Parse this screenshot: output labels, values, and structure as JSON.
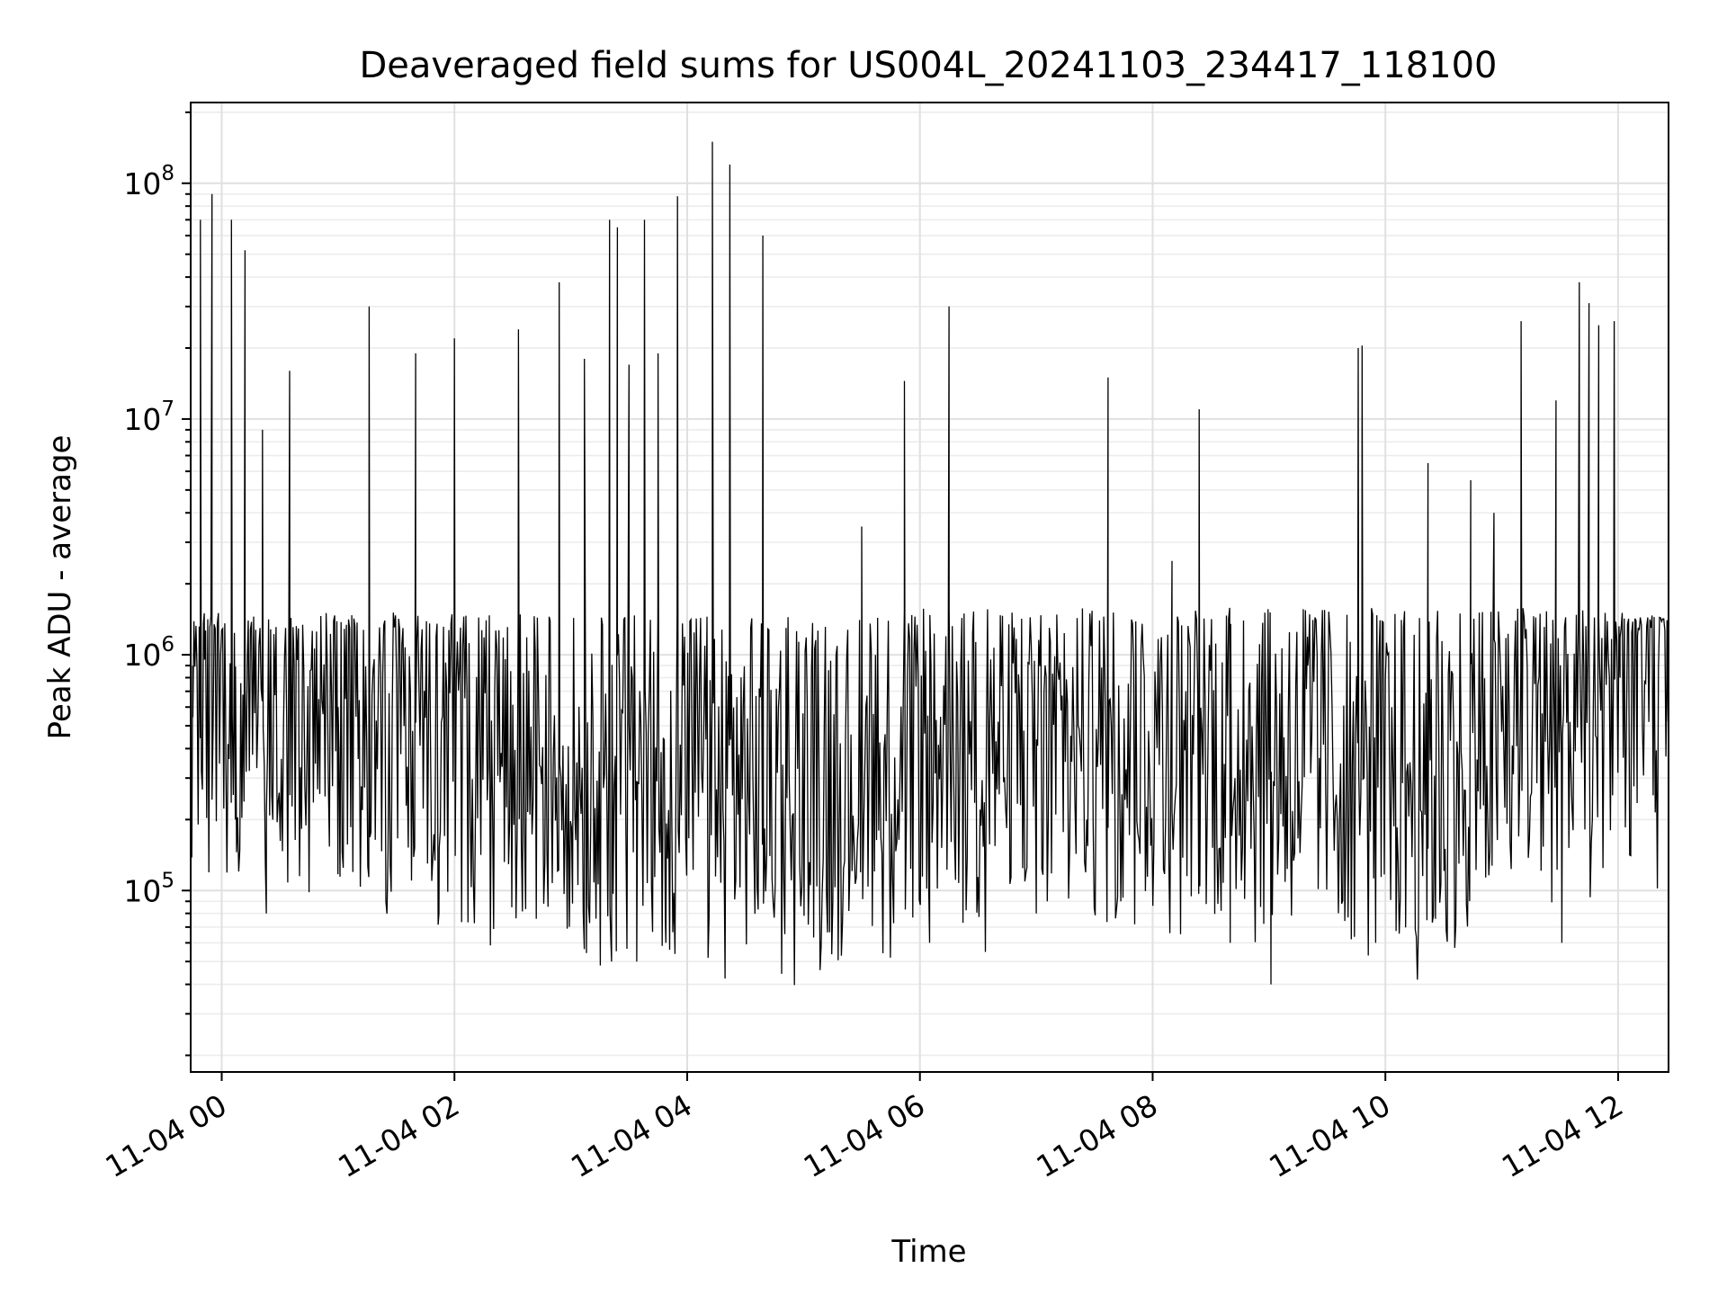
{
  "chart_data": {
    "type": "line",
    "title": "Deaveraged field sums for US004L_20241103_234417_118100",
    "xlabel": "Time",
    "ylabel": "Peak ADU - average",
    "yscale": "log",
    "ylim": [
      17000,
      220000000
    ],
    "xlim": [
      "2024-11-03 23:44",
      "2024-11-04 12:26"
    ],
    "grid": true,
    "legend": "none",
    "line_color": "#000000",
    "x_ticks": [
      "11-04 00",
      "11-04 02",
      "11-04 04",
      "11-04 06",
      "11-04 08",
      "11-04 10",
      "11-04 12"
    ],
    "x_tick_values": [
      "2024-11-04 00:00",
      "2024-11-04 02:00",
      "2024-11-04 04:00",
      "2024-11-04 06:00",
      "2024-11-04 08:00",
      "2024-11-04 10:00",
      "2024-11-04 12:00"
    ],
    "y_ticks": [
      {
        "value": 100000,
        "base": "10",
        "exp": "5"
      },
      {
        "value": 1000000,
        "base": "10",
        "exp": "6"
      },
      {
        "value": 10000000,
        "base": "10",
        "exp": "7"
      },
      {
        "value": 100000000,
        "base": "10",
        "exp": "8"
      }
    ],
    "series": [
      {
        "x": [
          "2024-11-03 23:45",
          "2024-11-03 23:49",
          "2024-11-03 23:51",
          "2024-11-03 23:55",
          "2024-11-04 00:02",
          "2024-11-04 00:05",
          "2024-11-04 00:07",
          "2024-11-04 00:12",
          "2024-11-04 00:21",
          "2024-11-04 00:23",
          "2024-11-04 00:35",
          "2024-11-04 00:36",
          "2024-11-04 01:00",
          "2024-11-04 01:16",
          "2024-11-04 01:40",
          "2024-11-04 01:52",
          "2024-11-04 02:00",
          "2024-11-04 02:33",
          "2024-11-04 02:54",
          "2024-11-04 03:07",
          "2024-11-04 03:20",
          "2024-11-04 03:21",
          "2024-11-04 03:24",
          "2024-11-04 03:30",
          "2024-11-04 03:34",
          "2024-11-04 03:38",
          "2024-11-04 03:45",
          "2024-11-04 03:49",
          "2024-11-04 03:55",
          "2024-11-04 04:13",
          "2024-11-04 04:22",
          "2024-11-04 04:39",
          "2024-11-04 04:51",
          "2024-11-04 05:30",
          "2024-11-04 05:52",
          "2024-11-04 06:05",
          "2024-11-04 06:15",
          "2024-11-04 06:36",
          "2024-11-04 07:00",
          "2024-11-04 07:37",
          "2024-11-04 08:10",
          "2024-11-04 08:24",
          "2024-11-04 08:40",
          "2024-11-04 09:01",
          "2024-11-04 09:20",
          "2024-11-04 09:46",
          "2024-11-04 09:48",
          "2024-11-04 09:55",
          "2024-11-04 10:22",
          "2024-11-04 10:44",
          "2024-11-04 10:56",
          "2024-11-04 11:10",
          "2024-11-04 11:28",
          "2024-11-04 11:31",
          "2024-11-04 11:40",
          "2024-11-04 11:45",
          "2024-11-04 11:50",
          "2024-11-04 11:58",
          "2024-11-04 12:01",
          "2024-11-04 12:10",
          "2024-11-04 12:25"
        ],
        "y": [
          900000,
          70000000,
          1500000,
          90000000,
          600000,
          70000000,
          200000,
          52000000,
          9000000,
          80000,
          16000000,
          700000,
          600000,
          30000000,
          19000000,
          80000,
          22000000,
          24000000,
          38000000,
          18000000,
          70000000,
          50000,
          65000000,
          17000000,
          50000,
          70000000,
          19000000,
          60000,
          88000000,
          150000000,
          120000000,
          60000000,
          1300000,
          3500000,
          14500000,
          60000,
          30000000,
          500000,
          80000,
          15000000,
          2500000,
          11000000,
          60000,
          40000,
          900000,
          20000000,
          20500000,
          60000,
          6500000,
          5500000,
          4000000,
          26000000,
          12000000,
          60000,
          38000000,
          31000000,
          25000000,
          26000000,
          800000,
          1200000,
          600000
        ]
      }
    ]
  }
}
